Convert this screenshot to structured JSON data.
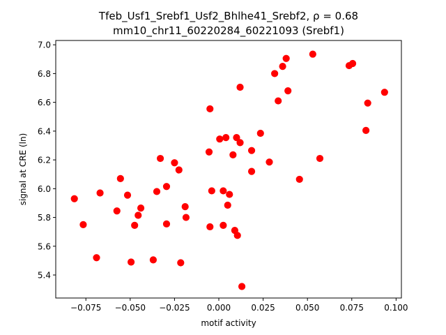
{
  "chart_data": {
    "type": "scatter",
    "title_line1": "Tfeb_Usf1_Srebf1_Usf2_Bhlhe41_Srebf2, ρ = 0.68",
    "title_line2": "mm10_chr11_60220284_60221093 (Srebf1)",
    "xlabel": "motif activity",
    "ylabel": "signal at CRE (ln)",
    "xlim": [
      -0.092,
      0.103
    ],
    "ylim": [
      5.24,
      7.03
    ],
    "xticks": [
      -0.075,
      -0.05,
      -0.025,
      0.0,
      0.025,
      0.05,
      0.075,
      0.1
    ],
    "xtick_labels": [
      "−0.075",
      "−0.050",
      "−0.025",
      "0.000",
      "0.025",
      "0.050",
      "0.075",
      "0.100"
    ],
    "yticks": [
      5.4,
      5.6,
      5.8,
      6.0,
      6.2,
      6.4,
      6.6,
      6.8,
      7.0
    ],
    "ytick_labels": [
      "5.4",
      "5.6",
      "5.8",
      "6.0",
      "6.2",
      "6.4",
      "6.6",
      "6.8",
      "7.0"
    ],
    "marker_color": "#ff0000",
    "grid": false,
    "points": [
      {
        "x": -0.0815,
        "y": 5.93
      },
      {
        "x": -0.0765,
        "y": 5.75
      },
      {
        "x": -0.069,
        "y": 5.52
      },
      {
        "x": -0.067,
        "y": 5.97
      },
      {
        "x": -0.0575,
        "y": 5.845
      },
      {
        "x": -0.0555,
        "y": 6.07
      },
      {
        "x": -0.0515,
        "y": 5.955
      },
      {
        "x": -0.0495,
        "y": 5.49
      },
      {
        "x": -0.0475,
        "y": 5.745
      },
      {
        "x": -0.0455,
        "y": 5.815
      },
      {
        "x": -0.044,
        "y": 5.865
      },
      {
        "x": -0.037,
        "y": 5.505
      },
      {
        "x": -0.035,
        "y": 5.98
      },
      {
        "x": -0.033,
        "y": 6.21
      },
      {
        "x": -0.0295,
        "y": 6.015
      },
      {
        "x": -0.0295,
        "y": 5.755
      },
      {
        "x": -0.025,
        "y": 6.18
      },
      {
        "x": -0.0225,
        "y": 6.13
      },
      {
        "x": -0.0215,
        "y": 5.485
      },
      {
        "x": -0.019,
        "y": 5.875
      },
      {
        "x": -0.0185,
        "y": 5.8
      },
      {
        "x": -0.0055,
        "y": 6.255
      },
      {
        "x": -0.005,
        "y": 6.555
      },
      {
        "x": -0.005,
        "y": 5.735
      },
      {
        "x": -0.004,
        "y": 5.985
      },
      {
        "x": 0.0005,
        "y": 6.345
      },
      {
        "x": 0.0025,
        "y": 5.985
      },
      {
        "x": 0.0025,
        "y": 5.745
      },
      {
        "x": 0.004,
        "y": 6.355
      },
      {
        "x": 0.005,
        "y": 5.885
      },
      {
        "x": 0.006,
        "y": 5.96
      },
      {
        "x": 0.008,
        "y": 6.235
      },
      {
        "x": 0.009,
        "y": 5.71
      },
      {
        "x": 0.01,
        "y": 6.355
      },
      {
        "x": 0.0105,
        "y": 5.675
      },
      {
        "x": 0.012,
        "y": 6.32
      },
      {
        "x": 0.012,
        "y": 6.705
      },
      {
        "x": 0.013,
        "y": 5.32
      },
      {
        "x": 0.0185,
        "y": 6.265
      },
      {
        "x": 0.0185,
        "y": 6.12
      },
      {
        "x": 0.0235,
        "y": 6.385
      },
      {
        "x": 0.0285,
        "y": 6.185
      },
      {
        "x": 0.0315,
        "y": 6.8
      },
      {
        "x": 0.0335,
        "y": 6.61
      },
      {
        "x": 0.036,
        "y": 6.85
      },
      {
        "x": 0.038,
        "y": 6.905
      },
      {
        "x": 0.039,
        "y": 6.68
      },
      {
        "x": 0.0455,
        "y": 6.065
      },
      {
        "x": 0.053,
        "y": 6.935
      },
      {
        "x": 0.057,
        "y": 6.21
      },
      {
        "x": 0.0735,
        "y": 6.855
      },
      {
        "x": 0.0755,
        "y": 6.87
      },
      {
        "x": 0.083,
        "y": 6.405
      },
      {
        "x": 0.084,
        "y": 6.595
      },
      {
        "x": 0.0935,
        "y": 6.67
      }
    ]
  }
}
